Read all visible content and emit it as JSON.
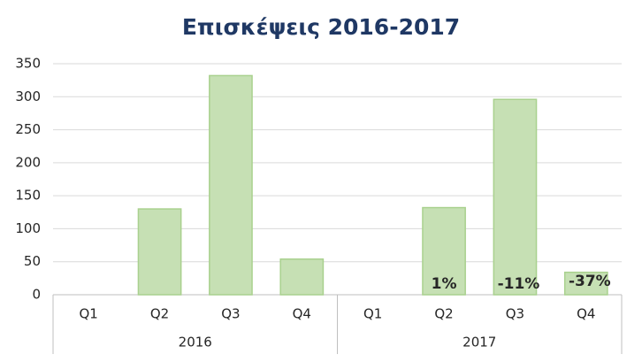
{
  "chart_data": {
    "type": "bar",
    "title": "Επισκέψεις 2016-2017",
    "groups": [
      {
        "label": "2016",
        "categories": [
          "Q1",
          "Q2",
          "Q3",
          "Q4"
        ],
        "values": [
          0,
          130,
          332,
          54
        ]
      },
      {
        "label": "2017",
        "categories": [
          "Q1",
          "Q2",
          "Q3",
          "Q4"
        ],
        "values": [
          0,
          132,
          296,
          34
        ]
      }
    ],
    "color": "#c6e0b4",
    "edge_color": "#a9d18e",
    "ylim": [
      0,
      350
    ],
    "yticks": [
      0,
      50,
      100,
      150,
      200,
      250,
      300,
      350
    ],
    "grid": true,
    "annotations": [
      {
        "text": "1%",
        "group": "2017",
        "category": "Q2",
        "color": "#1f3864"
      },
      {
        "text": "-11%",
        "group": "2017",
        "category": "Q3",
        "color": "#e00000"
      },
      {
        "text": "-37%",
        "group": "2017",
        "category": "Q4",
        "color": "#e00000"
      }
    ]
  }
}
